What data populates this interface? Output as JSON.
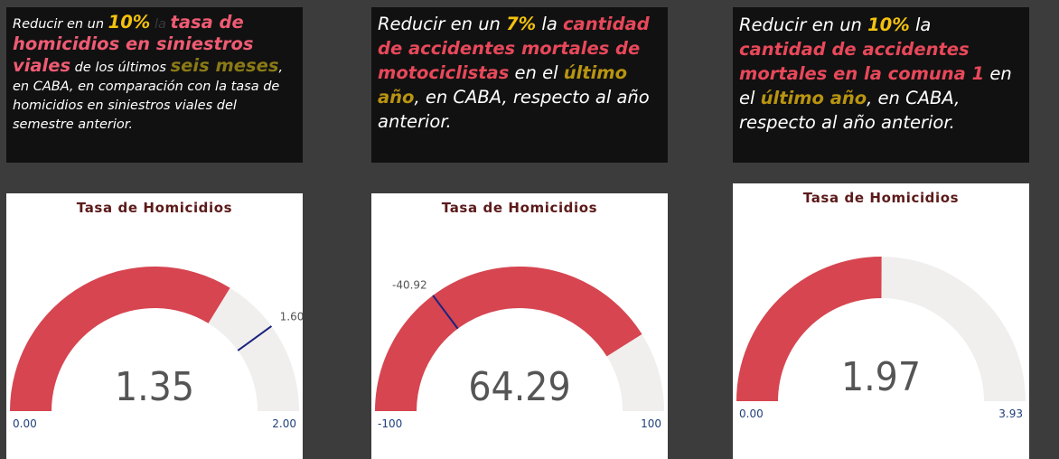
{
  "kpi1": {
    "p1": "Reducir en un ",
    "pct": "10%",
    "p2": " la ",
    "topic": "tasa de homicidios en siniestros viales",
    "p3": " de los últimos ",
    "period": "seis meses",
    "p4": ", en CABA, en comparación con la tasa de homicidios en siniestros viales del semestre anterior."
  },
  "kpi2": {
    "p1": "Reducir en un ",
    "pct": "7%",
    "p2": " la ",
    "topic": "cantidad de accidentes mortales de motociclistas",
    "p3": " en el ",
    "period": "último año",
    "p4": ",  en CABA, respecto al año anterior."
  },
  "kpi3": {
    "p1": "Reducir en un ",
    "pct": "10%",
    "p2": " la ",
    "topic": "cantidad de accidentes mortales en la comuna 1",
    "p3": " en el ",
    "period": "último año",
    "p4": ",  en CABA, respecto al año anterior."
  },
  "colors": {
    "fill": "#d64550",
    "track": "#f1efee",
    "target": "#1a237e"
  },
  "gauges": [
    {
      "title": "Tasa de Homicidios",
      "value": 1.35,
      "value_label": "1.35",
      "min": 0,
      "max": 2,
      "min_label": "0.00",
      "max_label": "2.00",
      "target": 1.6,
      "target_label": "1.60"
    },
    {
      "title": "Tasa de Homicidios",
      "value": 64.29,
      "value_label": "64.29",
      "min": -100,
      "max": 100,
      "min_label": "-100",
      "max_label": "100",
      "target": -40.92,
      "target_label": "-40.92"
    },
    {
      "title": "Tasa de Homicidios",
      "value": 1.97,
      "value_label": "1.97",
      "min": 0,
      "max": 3.93,
      "min_label": "0.00",
      "max_label": "3.93",
      "target": null,
      "target_label": null
    }
  ]
}
